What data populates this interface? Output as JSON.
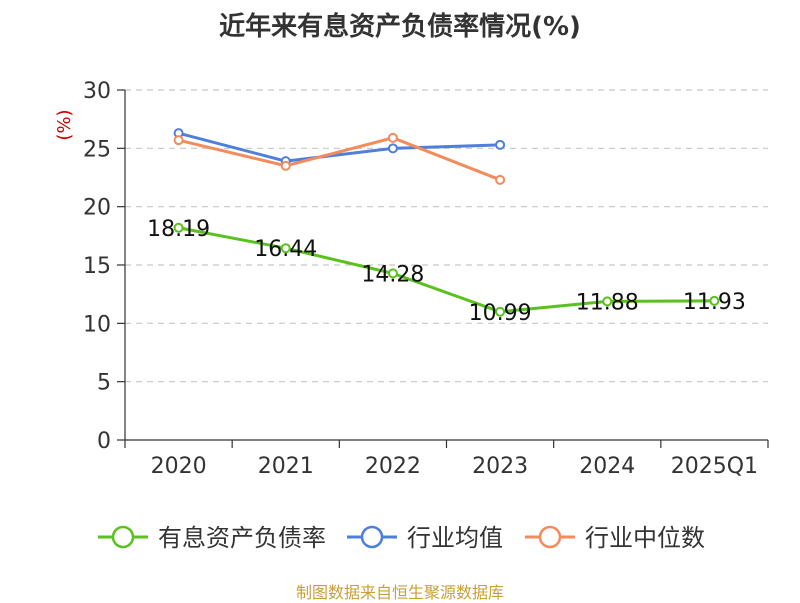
{
  "chart_data": {
    "type": "line",
    "title": "近年来有息资产负债率情况(%)",
    "ylabel": "(%)",
    "xlabel": "",
    "categories": [
      "2020",
      "2021",
      "2022",
      "2023",
      "2024",
      "2025Q1"
    ],
    "ylim": [
      0,
      30
    ],
    "yticks": [
      0,
      5,
      10,
      15,
      20,
      25,
      30
    ],
    "grid": true,
    "legend_position": "bottom",
    "series": [
      {
        "name": "有息资产负债率",
        "color": "#5ac11f",
        "values": [
          18.19,
          16.44,
          14.28,
          10.99,
          11.88,
          11.93
        ],
        "labels": [
          "18.19",
          "16.44",
          "14.28",
          "10.99",
          "11.88",
          "11.93"
        ]
      },
      {
        "name": "行业均值",
        "color": "#4f7fdc",
        "values": [
          26.3,
          23.9,
          25.0,
          25.3,
          null,
          null
        ]
      },
      {
        "name": "行业中位数",
        "color": "#f28c5c",
        "values": [
          25.7,
          23.5,
          25.9,
          22.3,
          null,
          null
        ]
      }
    ]
  },
  "source": "制图数据来自恒生聚源数据库"
}
